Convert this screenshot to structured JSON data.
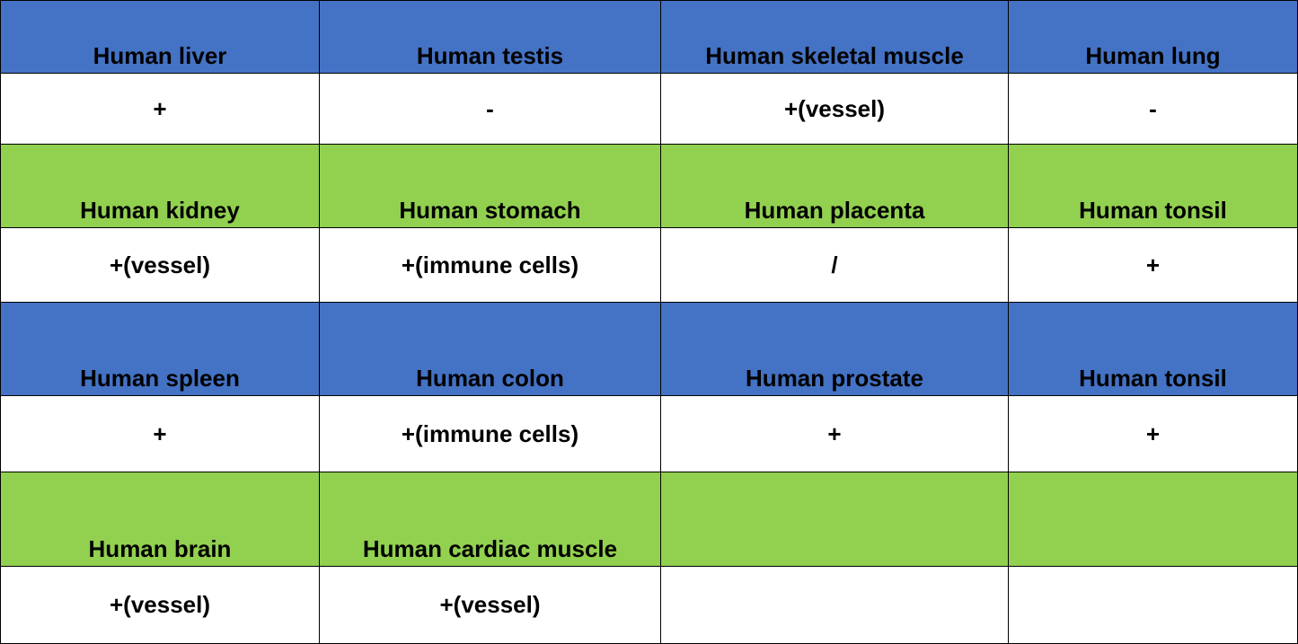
{
  "table": {
    "rows": [
      [
        "Human liver",
        "Human testis",
        "Human skeletal muscle",
        "Human lung"
      ],
      [
        "+",
        "-",
        "+(vessel)",
        "-"
      ],
      [
        "Human kidney",
        "Human stomach",
        "Human placenta",
        "Human tonsil"
      ],
      [
        "+(vessel)",
        "+(immune cells)",
        "/",
        "+"
      ],
      [
        "Human spleen",
        "Human colon",
        "Human prostate",
        "Human tonsil"
      ],
      [
        "+",
        "+(immune cells)",
        "+",
        "+"
      ],
      [
        "Human brain",
        "Human cardiac muscle"
      ],
      [
        "+(vessel)",
        "+(vessel)"
      ]
    ]
  }
}
